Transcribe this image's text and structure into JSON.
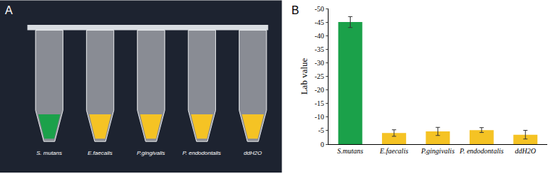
{
  "panel_a": {
    "label": "A",
    "tube_labels": [
      "S. mutans",
      "E.faecalis",
      "P.gingivalis",
      "P. endodontalis",
      "ddH2O"
    ]
  },
  "panel_b": {
    "label": "B"
  },
  "chart_data": {
    "type": "bar",
    "y_label": "Lab value",
    "categories": [
      "S.mutans",
      "E.faecalis",
      "P.gingivalis",
      "P. endodontalis",
      "ddH2O"
    ],
    "values": [
      -45,
      -4.1,
      -4.7,
      -5.2,
      -3.5
    ],
    "errors": [
      2,
      1.2,
      1.5,
      0.9,
      1.6
    ],
    "colors": [
      "#1ba14a",
      "#f5c324",
      "#f5c324",
      "#f5c324",
      "#f5c324"
    ],
    "ylim": [
      0,
      -50
    ],
    "yticks": [
      0,
      -5,
      -10,
      -15,
      -20,
      -25,
      -30,
      -35,
      -40,
      -45,
      -50
    ],
    "grid": false
  }
}
